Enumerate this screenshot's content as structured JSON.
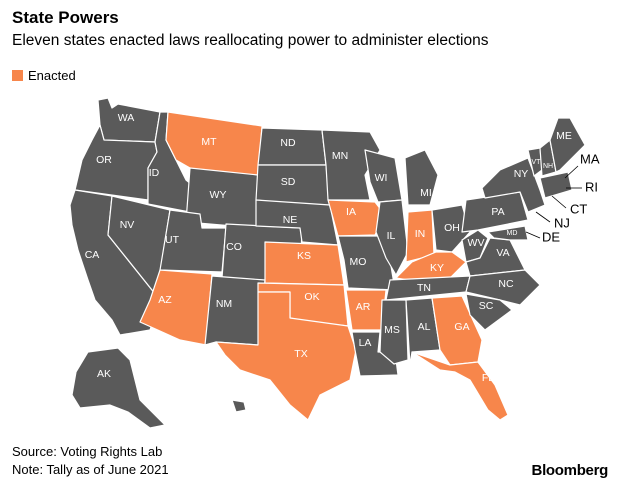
{
  "header": {
    "title": "State Powers",
    "subtitle": "Eleven states enacted laws reallocating power to administer elections"
  },
  "legend": {
    "label": "Enacted",
    "color": "#f7864b"
  },
  "colors": {
    "enacted": "#f7864b",
    "other": "#5a5a5a"
  },
  "footer": {
    "source": "Source: Voting Rights Lab",
    "note": "Note: Tally as of June 2021",
    "brand": "Bloomberg"
  },
  "states": {
    "WA": {
      "label": "WA",
      "enacted": false
    },
    "OR": {
      "label": "OR",
      "enacted": false
    },
    "CA": {
      "label": "CA",
      "enacted": false
    },
    "ID": {
      "label": "ID",
      "enacted": false
    },
    "NV": {
      "label": "NV",
      "enacted": false
    },
    "MT": {
      "label": "MT",
      "enacted": true
    },
    "WY": {
      "label": "WY",
      "enacted": false
    },
    "UT": {
      "label": "UT",
      "enacted": false
    },
    "AZ": {
      "label": "AZ",
      "enacted": true
    },
    "CO": {
      "label": "CO",
      "enacted": false
    },
    "NM": {
      "label": "NM",
      "enacted": false
    },
    "ND": {
      "label": "ND",
      "enacted": false
    },
    "SD": {
      "label": "SD",
      "enacted": false
    },
    "NE": {
      "label": "NE",
      "enacted": false
    },
    "KS": {
      "label": "KS",
      "enacted": true
    },
    "OK": {
      "label": "OK",
      "enacted": true
    },
    "TX": {
      "label": "TX",
      "enacted": true
    },
    "MN": {
      "label": "MN",
      "enacted": false
    },
    "IA": {
      "label": "IA",
      "enacted": true
    },
    "MO": {
      "label": "MO",
      "enacted": false
    },
    "AR": {
      "label": "AR",
      "enacted": true
    },
    "LA": {
      "label": "LA",
      "enacted": false
    },
    "WI": {
      "label": "WI",
      "enacted": false
    },
    "IL": {
      "label": "IL",
      "enacted": false
    },
    "MS": {
      "label": "MS",
      "enacted": false
    },
    "MI": {
      "label": "MI",
      "enacted": false
    },
    "IN": {
      "label": "IN",
      "enacted": true
    },
    "KY": {
      "label": "KY",
      "enacted": true
    },
    "TN": {
      "label": "TN",
      "enacted": false
    },
    "AL": {
      "label": "AL",
      "enacted": false
    },
    "GA": {
      "label": "GA",
      "enacted": true
    },
    "FL": {
      "label": "FL",
      "enacted": true
    },
    "OH": {
      "label": "OH",
      "enacted": false
    },
    "WV": {
      "label": "WV",
      "enacted": false
    },
    "VA": {
      "label": "VA",
      "enacted": false
    },
    "NC": {
      "label": "NC",
      "enacted": false
    },
    "SC": {
      "label": "SC",
      "enacted": false
    },
    "PA": {
      "label": "PA",
      "enacted": false
    },
    "NY": {
      "label": "NY",
      "enacted": false
    },
    "VT": {
      "label": "VT",
      "enacted": false
    },
    "NH": {
      "label": "NH",
      "enacted": false
    },
    "ME": {
      "label": "ME",
      "enacted": false
    },
    "MD": {
      "label": "MD",
      "enacted": false
    },
    "AK": {
      "label": "AK",
      "enacted": false
    },
    "HI": {
      "label": "",
      "enacted": false
    },
    "NE_SMALL": {
      "label": "",
      "enacted": false
    }
  },
  "callouts": {
    "MA": "MA",
    "RI": "RI",
    "CT": "CT",
    "NJ": "NJ",
    "DE": "DE"
  }
}
